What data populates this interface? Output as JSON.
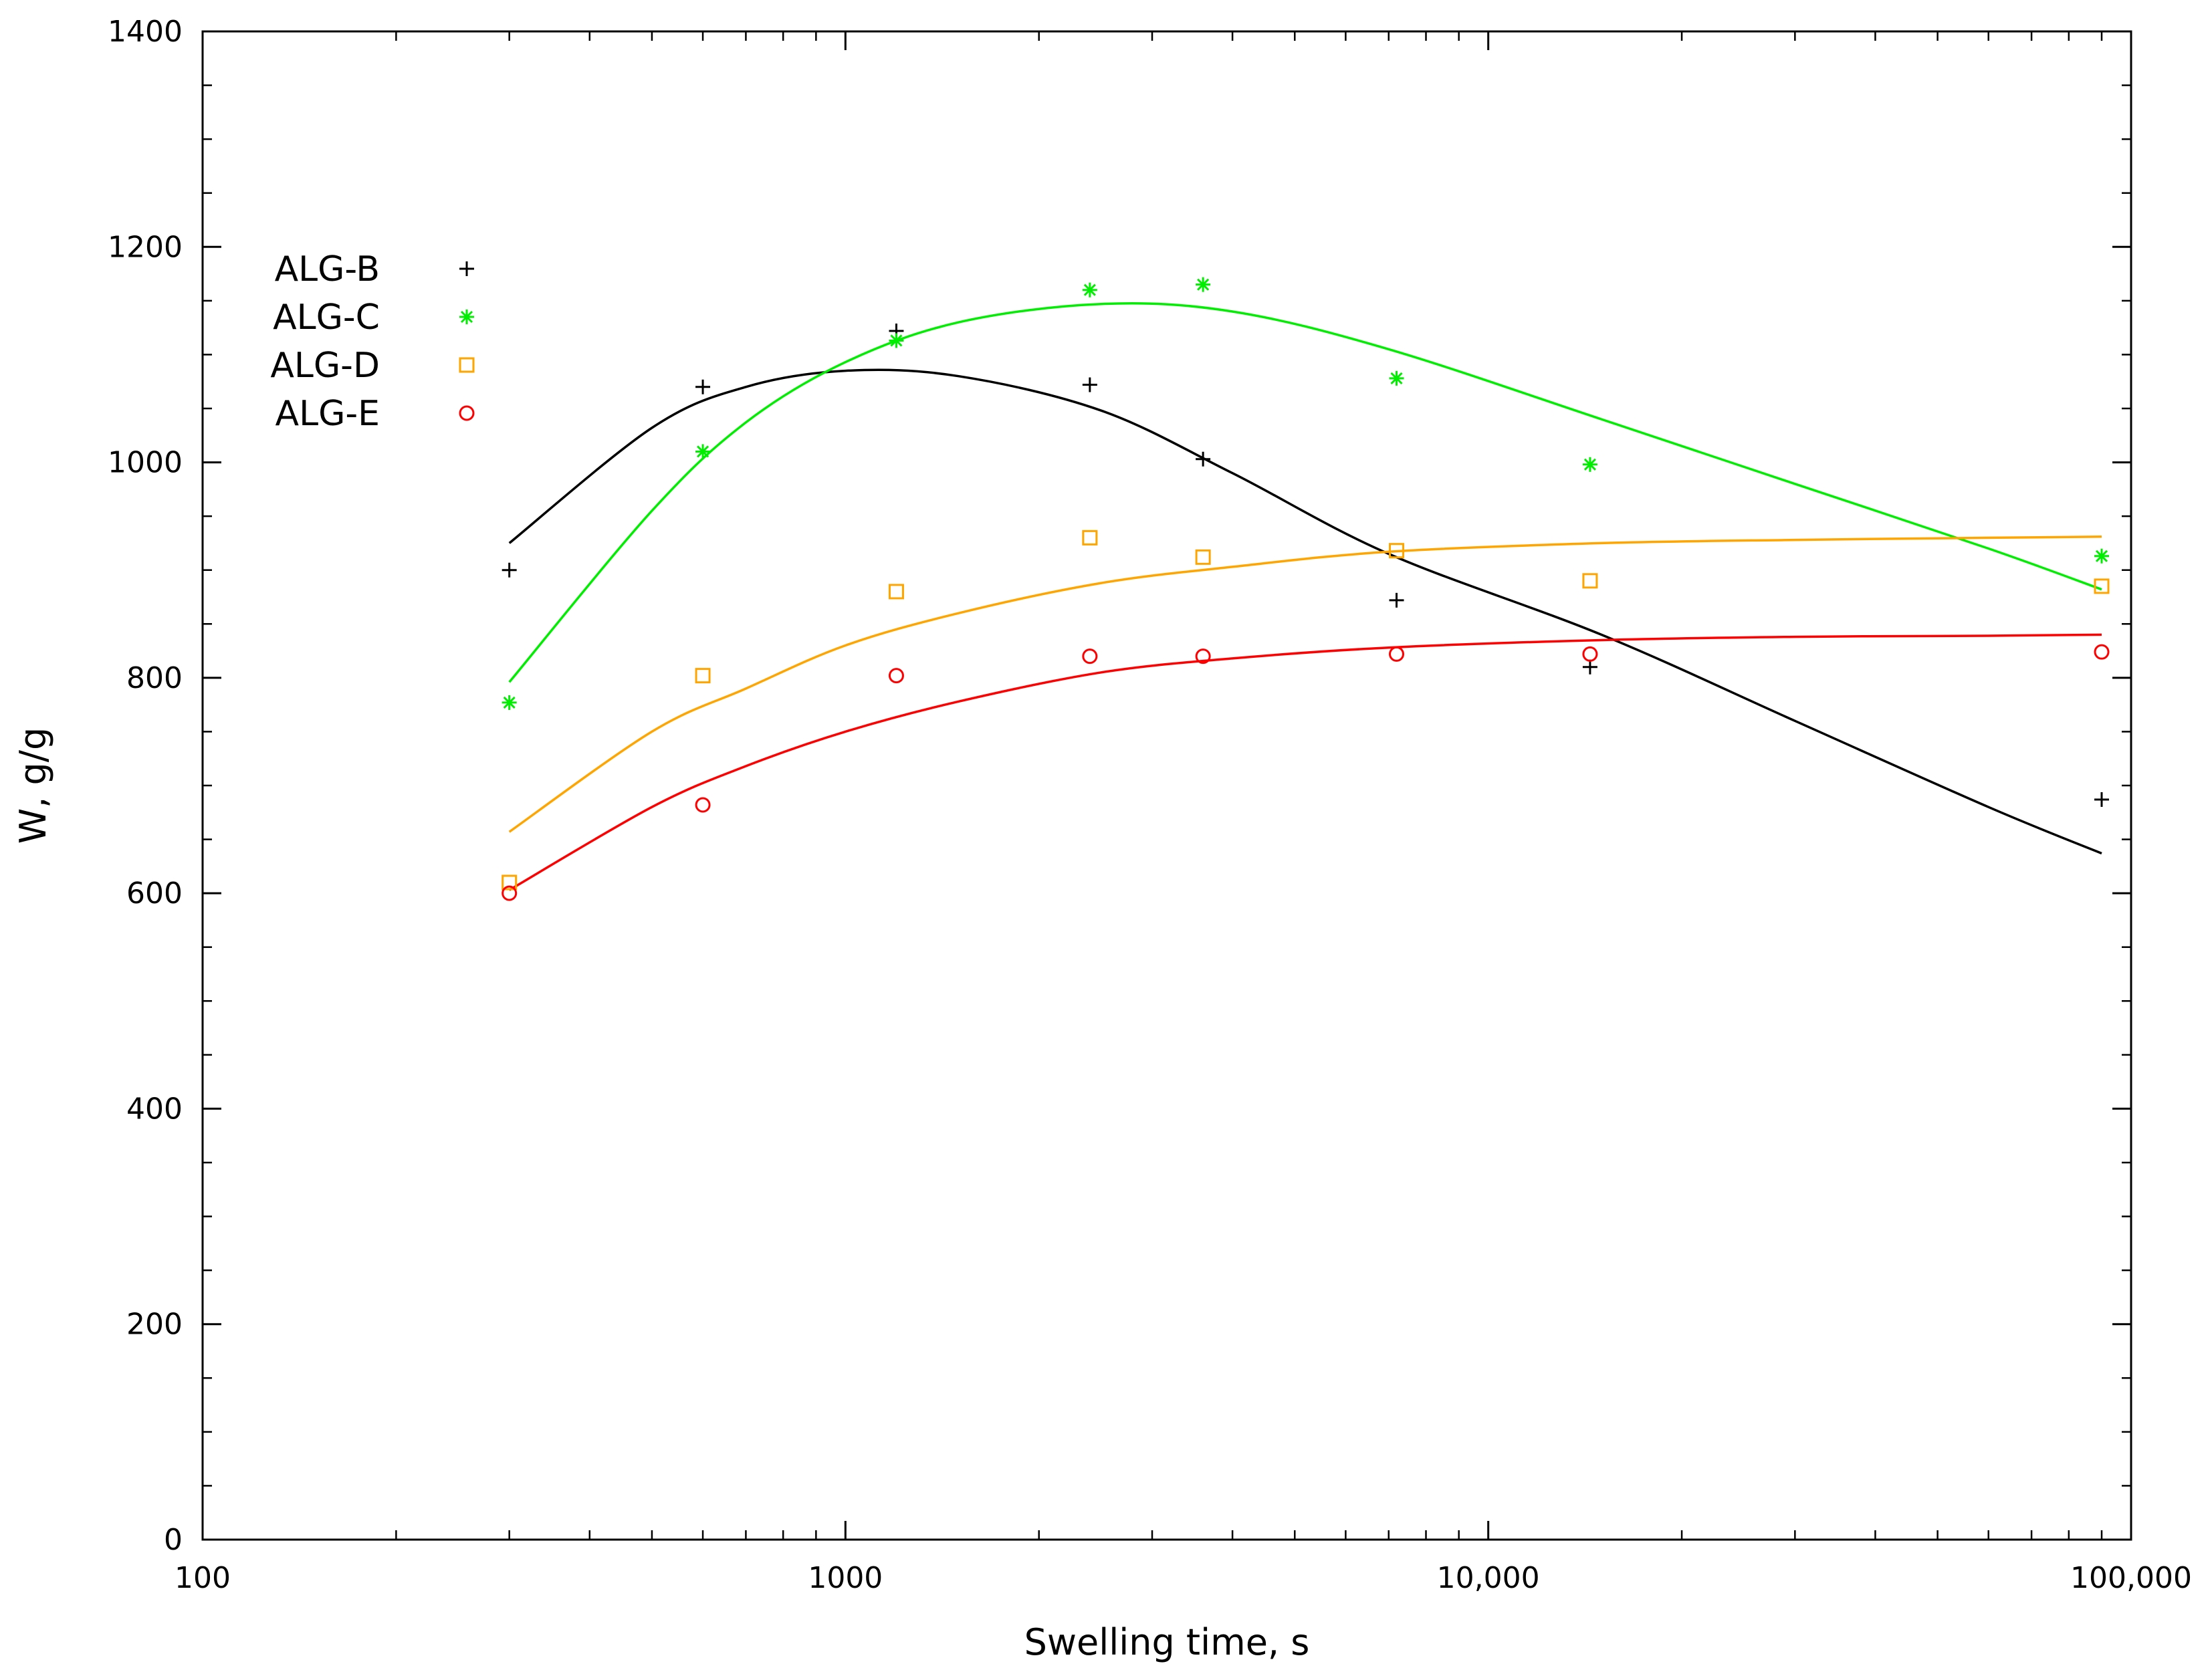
{
  "chart_data": {
    "type": "scatter",
    "xlabel": "Swelling time, s",
    "ylabel": "W, g/g",
    "xscale": "log",
    "xlim": [
      100,
      100000
    ],
    "ylim": [
      0,
      1400
    ],
    "xticks": [
      {
        "value": 100,
        "label": "100"
      },
      {
        "value": 1000,
        "label": "1000"
      },
      {
        "value": 10000,
        "label": "10,000"
      },
      {
        "value": 100000,
        "label": "100,000"
      }
    ],
    "yticks": [
      {
        "value": 0,
        "label": "0"
      },
      {
        "value": 200,
        "label": "200"
      },
      {
        "value": 400,
        "label": "400"
      },
      {
        "value": 600,
        "label": "600"
      },
      {
        "value": 800,
        "label": "800"
      },
      {
        "value": 1000,
        "label": "1000"
      },
      {
        "value": 1200,
        "label": "1200"
      },
      {
        "value": 1400,
        "label": "1400"
      }
    ],
    "legend_position": "upper-left",
    "grid": false,
    "series": [
      {
        "name": "ALG-B",
        "color": "#000000",
        "marker": "plus",
        "x": [
          300,
          600,
          1200,
          2400,
          3600,
          7200,
          14400,
          90000
        ],
        "y": [
          900,
          1070,
          1122,
          1072,
          1003,
          872,
          810,
          687
        ],
        "fit": {
          "x": [
            300,
            500,
            700,
            1000,
            1500,
            2500,
            4000,
            7000,
            15000,
            30000,
            60000,
            90000
          ],
          "y": [
            925,
            1032,
            1070,
            1085,
            1080,
            1048,
            990,
            915,
            840,
            760,
            680,
            637
          ]
        }
      },
      {
        "name": "ALG-C",
        "color": "#00ee00",
        "marker": "star",
        "x": [
          300,
          600,
          1200,
          2400,
          3600,
          7200,
          14400,
          90000
        ],
        "y": [
          777,
          1010,
          1113,
          1160,
          1165,
          1078,
          998,
          913
        ],
        "fit": {
          "x": [
            300,
            500,
            700,
            1000,
            1500,
            2500,
            4000,
            7000,
            15000,
            30000,
            60000,
            90000
          ],
          "y": [
            796,
            955,
            1037,
            1093,
            1130,
            1147,
            1140,
            1105,
            1040,
            980,
            920,
            882
          ]
        }
      },
      {
        "name": "ALG-D",
        "color": "#ffa500",
        "marker": "square",
        "x": [
          300,
          600,
          1200,
          2400,
          3600,
          7200,
          14400,
          90000
        ],
        "y": [
          610,
          802,
          880,
          930,
          912,
          918,
          890,
          885
        ],
        "fit": {
          "x": [
            300,
            500,
            700,
            1000,
            1500,
            2500,
            4000,
            7000,
            15000,
            30000,
            60000,
            90000
          ],
          "y": [
            657,
            750,
            790,
            830,
            860,
            888,
            903,
            917,
            925,
            928,
            930,
            931
          ]
        }
      },
      {
        "name": "ALG-E",
        "color": "#ff0000",
        "marker": "circle",
        "x": [
          300,
          600,
          1200,
          2400,
          3600,
          7200,
          14400,
          90000
        ],
        "y": [
          600,
          682,
          802,
          820,
          820,
          822,
          822,
          824
        ],
        "fit": {
          "x": [
            300,
            500,
            700,
            1000,
            1500,
            2500,
            4000,
            7000,
            15000,
            30000,
            60000,
            90000
          ],
          "y": [
            603,
            680,
            718,
            750,
            778,
            805,
            818,
            828,
            835,
            838,
            839,
            840
          ]
        }
      }
    ]
  }
}
